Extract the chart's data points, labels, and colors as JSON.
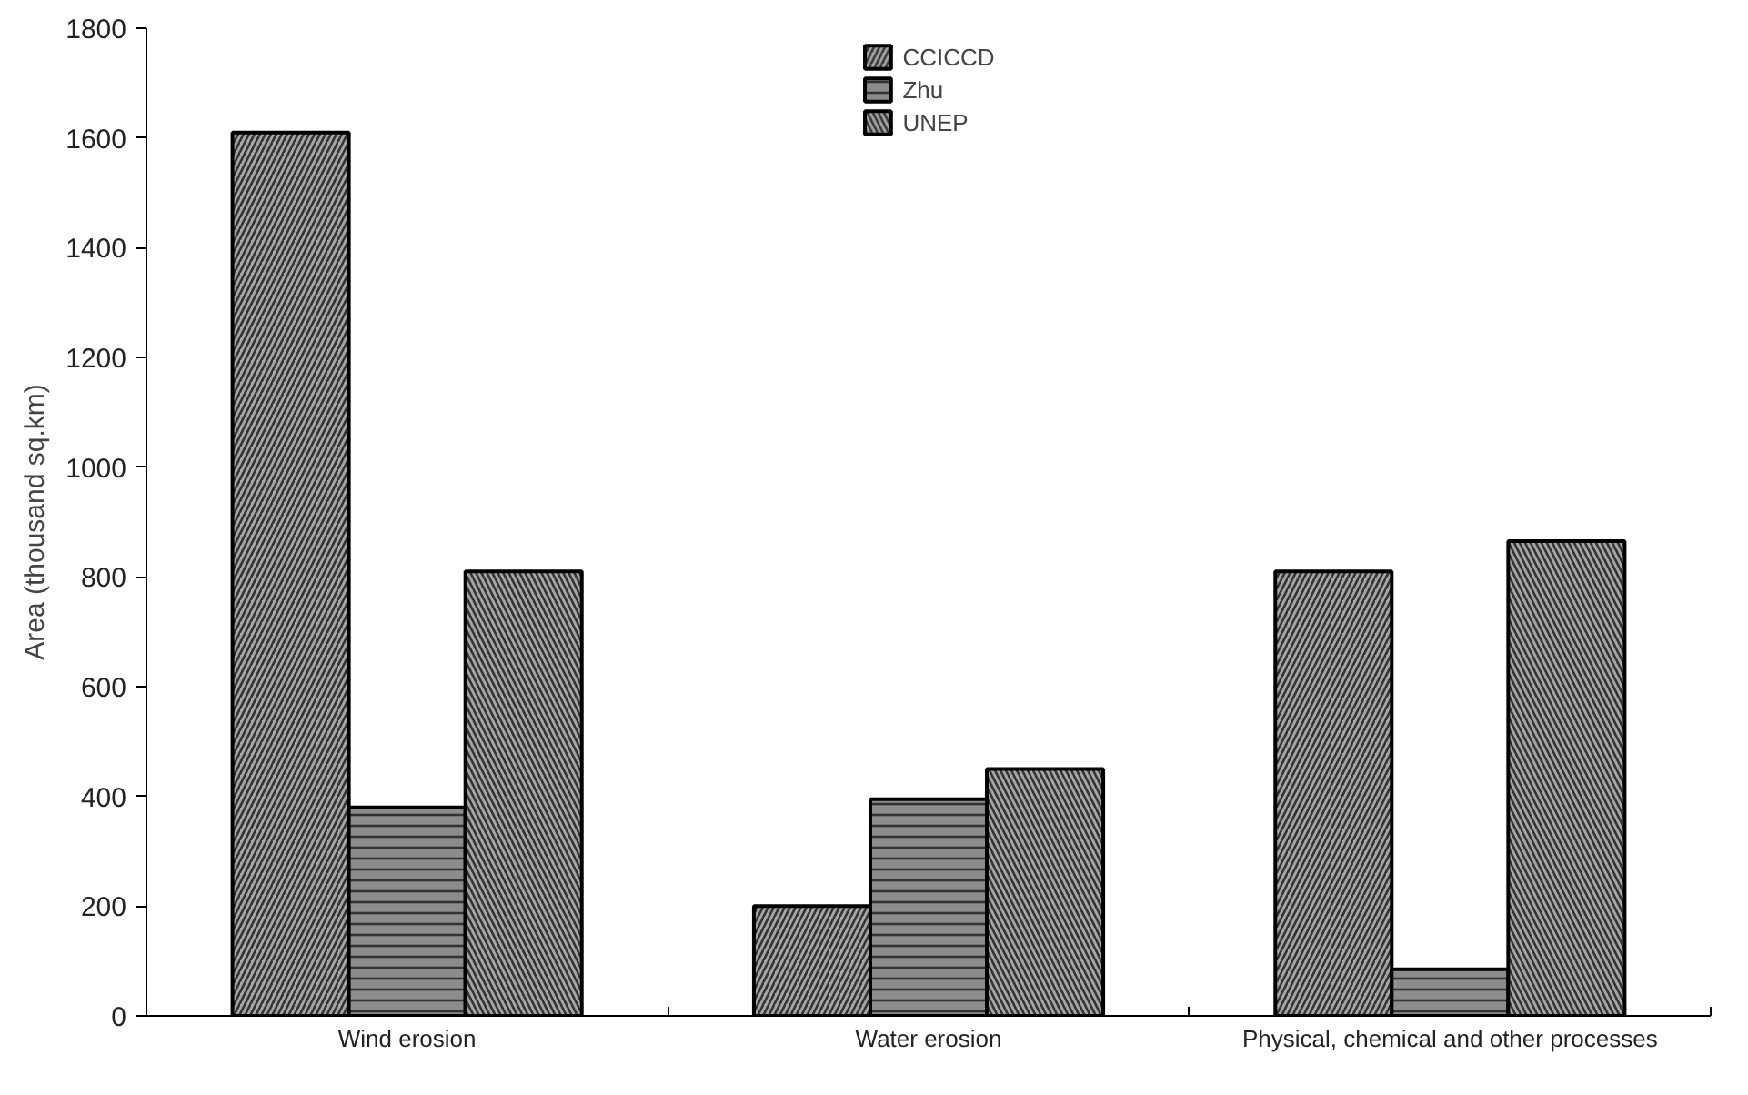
{
  "chart_data": {
    "type": "bar",
    "ylabel": "Area (thousand sq.km)",
    "categories": [
      "Wind erosion",
      "Water erosion",
      "Physical, chemical and other processes"
    ],
    "series": [
      {
        "name": "CCICCD",
        "color": "#a6a6a6",
        "values": [
          1610,
          200,
          810
        ]
      },
      {
        "name": "Zhu",
        "color": "#8c8c8c",
        "values": [
          380,
          395,
          85
        ]
      },
      {
        "name": "UNEP",
        "color": "#a6a6a6",
        "values": [
          810,
          450,
          865
        ]
      }
    ],
    "ylim": [
      0,
      1800
    ],
    "yticks": [
      0,
      200,
      400,
      600,
      800,
      1000,
      1200,
      1400,
      1600,
      1800
    ],
    "grid": false,
    "legend": "top"
  }
}
